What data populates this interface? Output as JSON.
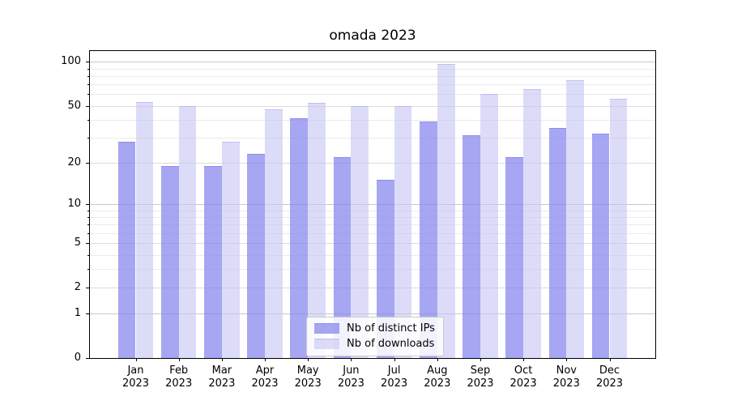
{
  "title": "omada 2023",
  "chart_data": {
    "type": "bar",
    "title": "omada 2023",
    "categories": [
      "Jan 2023",
      "Feb 2023",
      "Mar 2023",
      "Apr 2023",
      "May 2023",
      "Jun 2023",
      "Jul 2023",
      "Aug 2023",
      "Sep 2023",
      "Oct 2023",
      "Nov 2023",
      "Dec 2023"
    ],
    "x_tick_line1": [
      "Jan",
      "Feb",
      "Mar",
      "Apr",
      "May",
      "Jun",
      "Jul",
      "Aug",
      "Sep",
      "Oct",
      "Nov",
      "Dec"
    ],
    "x_tick_line2": "2023",
    "series": [
      {
        "name": "Nb of distinct IPs",
        "color": "#a6a6f2",
        "fill": "rgba(132,132,237,0.72)",
        "edge": "rgba(114,114,228,0.50)",
        "values": [
          28,
          19,
          19,
          23,
          41,
          22,
          15,
          39,
          31,
          22,
          35,
          32
        ]
      },
      {
        "name": "Nb of downloads",
        "color": "#dcdcf7",
        "fill": "rgba(197,197,245,0.60)",
        "edge": "rgba(168,168,240,0.55)",
        "values": [
          53,
          50,
          28,
          47,
          52,
          50,
          50,
          97,
          60,
          65,
          75,
          56
        ]
      }
    ],
    "yscale": "log1p",
    "ylim": [
      0,
      118.5
    ],
    "y_ticks": [
      0,
      1,
      2,
      5,
      10,
      20,
      50,
      100
    ],
    "y_minor_ticks": [
      3,
      4,
      6,
      7,
      8,
      9,
      30,
      40,
      60,
      70,
      80,
      90
    ],
    "y_major_grid": [
      1,
      10,
      100
    ],
    "grid": "on",
    "legend_position": "lower center",
    "xlabel": "",
    "ylabel": ""
  },
  "colors": {
    "background": "#ffffff",
    "spine": "#000000",
    "text": "#000000",
    "grid_major": "#c9c9c9",
    "grid_mid": "#dcdcdc",
    "grid_minor": "#ebebeb"
  }
}
